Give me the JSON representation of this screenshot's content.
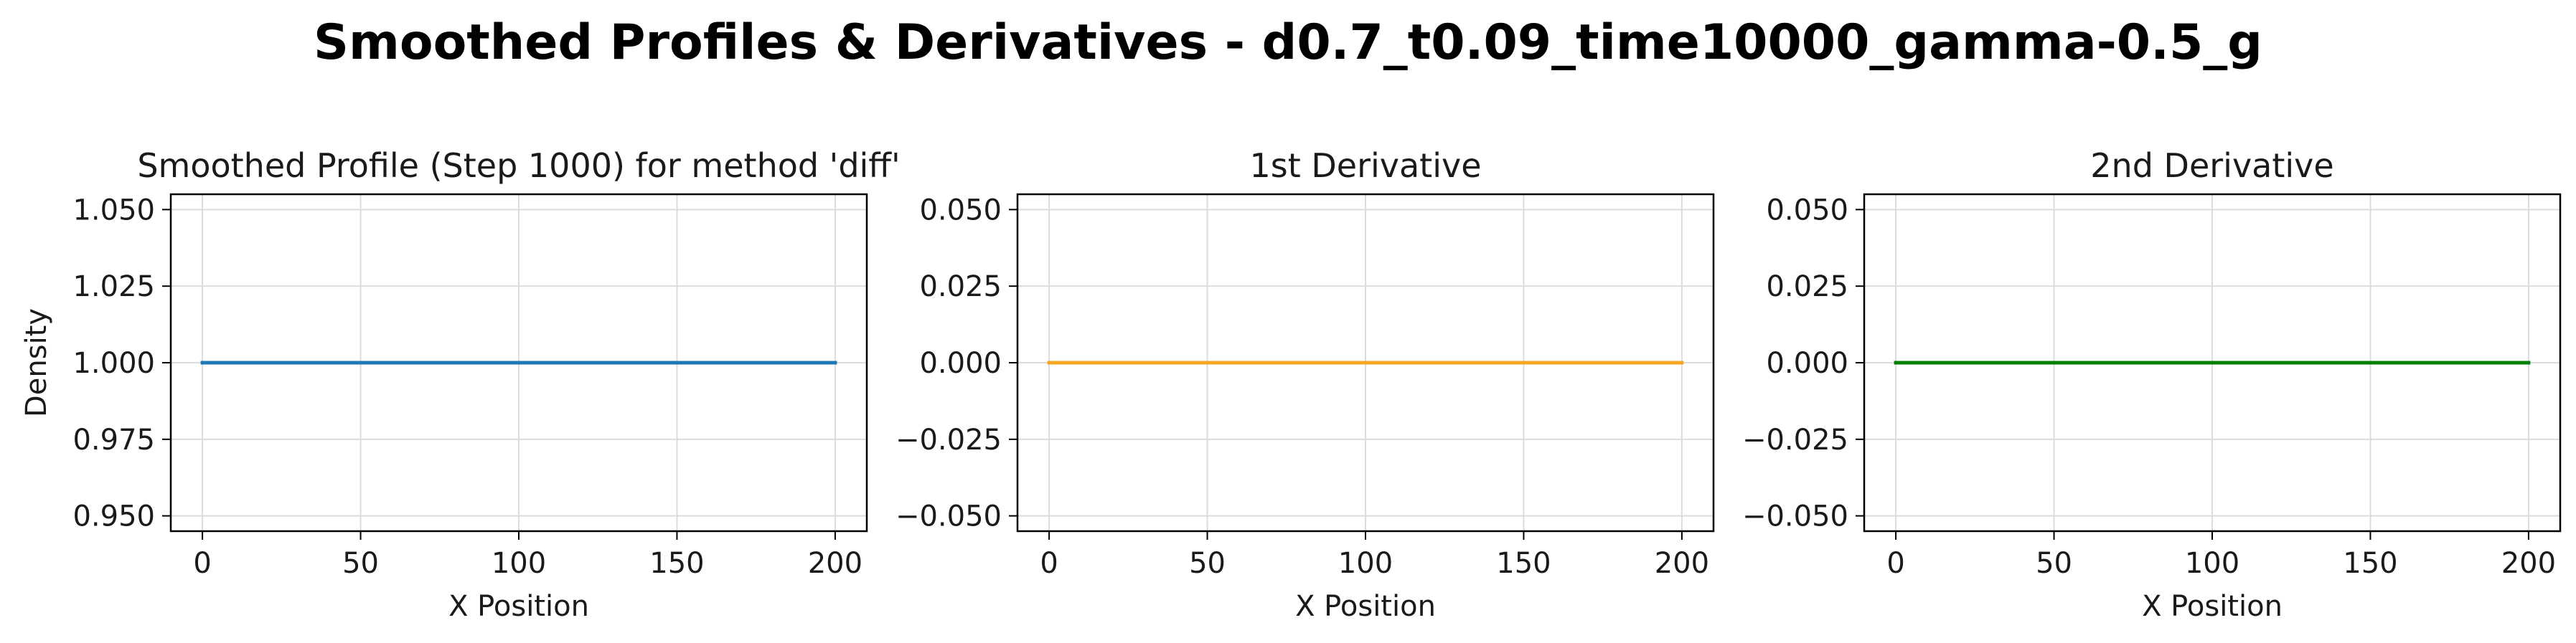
{
  "figure": {
    "suptitle": "Smoothed Profiles & Derivatives - d0.7_t0.09_time10000_gamma-0.5_g"
  },
  "chart_data": [
    {
      "type": "line",
      "title": "Smoothed Profile (Step 1000) for method 'diff'",
      "xlabel": "X Position",
      "ylabel": "Density",
      "xlim": [
        -10,
        210
      ],
      "ylim": [
        0.945,
        1.055
      ],
      "xticks": [
        0,
        50,
        100,
        150,
        200
      ],
      "xtick_labels": [
        "0",
        "50",
        "100",
        "150",
        "200"
      ],
      "yticks": [
        0.95,
        0.975,
        1.0,
        1.025,
        1.05
      ],
      "ytick_labels": [
        "0.950",
        "0.975",
        "1.000",
        "1.025",
        "1.050"
      ],
      "grid": true,
      "series": [
        {
          "color": "#1f77b4",
          "x": [
            0,
            200
          ],
          "y": [
            1.0,
            1.0
          ]
        }
      ]
    },
    {
      "type": "line",
      "title": "1st Derivative",
      "xlabel": "X Position",
      "ylabel": "",
      "xlim": [
        -10,
        210
      ],
      "ylim": [
        -0.055,
        0.055
      ],
      "xticks": [
        0,
        50,
        100,
        150,
        200
      ],
      "xtick_labels": [
        "0",
        "50",
        "100",
        "150",
        "200"
      ],
      "yticks": [
        -0.05,
        -0.025,
        0.0,
        0.025,
        0.05
      ],
      "ytick_labels": [
        "−0.050",
        "−0.025",
        "0.000",
        "0.025",
        "0.050"
      ],
      "grid": true,
      "series": [
        {
          "color": "#f5a623",
          "x": [
            0,
            200
          ],
          "y": [
            0.0,
            0.0
          ]
        }
      ]
    },
    {
      "type": "line",
      "title": "2nd Derivative",
      "xlabel": "X Position",
      "ylabel": "",
      "xlim": [
        -10,
        210
      ],
      "ylim": [
        -0.055,
        0.055
      ],
      "xticks": [
        0,
        50,
        100,
        150,
        200
      ],
      "xtick_labels": [
        "0",
        "50",
        "100",
        "150",
        "200"
      ],
      "yticks": [
        -0.05,
        -0.025,
        0.0,
        0.025,
        0.05
      ],
      "ytick_labels": [
        "−0.050",
        "−0.025",
        "0.000",
        "0.025",
        "0.050"
      ],
      "grid": true,
      "series": [
        {
          "color": "#008000",
          "x": [
            0,
            200
          ],
          "y": [
            0.0,
            0.0
          ]
        }
      ]
    }
  ]
}
